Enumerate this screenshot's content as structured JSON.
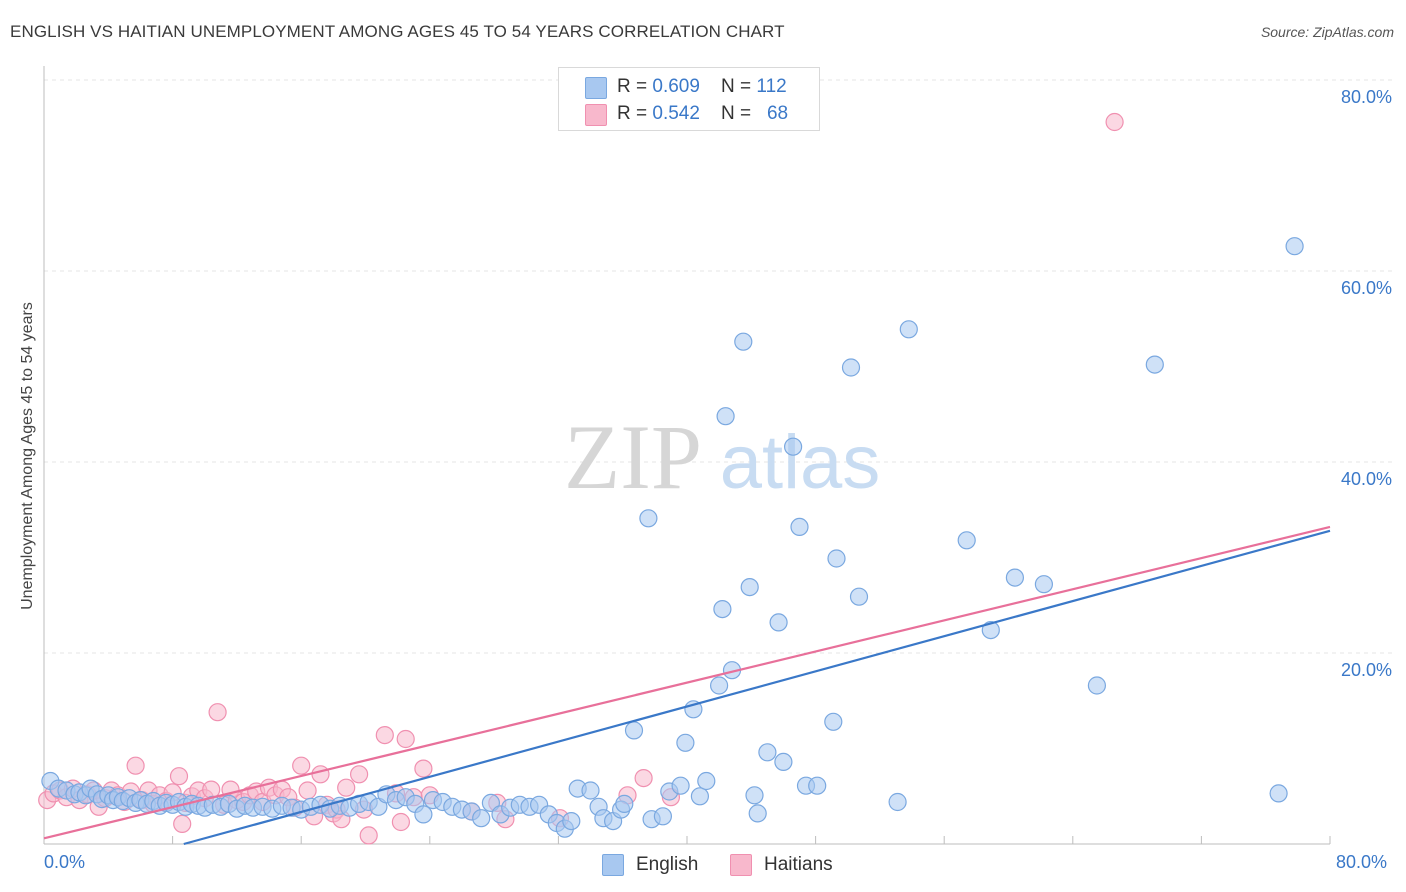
{
  "title": "ENGLISH VS HAITIAN UNEMPLOYMENT AMONG AGES 45 TO 54 YEARS CORRELATION CHART",
  "source": "Source: ZipAtlas.com",
  "watermark": {
    "zip": "ZIP",
    "atlas": "atlas"
  },
  "colors": {
    "english_fill": "#a8c8f0",
    "english_stroke": "#7aa8e0",
    "english_line": "#3a78c8",
    "haitians_fill": "#f8b8cc",
    "haitians_stroke": "#f090b0",
    "haitians_line": "#e8709a",
    "axis_value": "#3a78c8",
    "grid": "#e4e4e4"
  },
  "legend": {
    "rows": [
      {
        "r_label": "R = ",
        "r_value": "0.609",
        "n_label": "N = ",
        "n_value": "112"
      },
      {
        "r_label": "R = ",
        "r_value": "0.542",
        "n_label": "N = ",
        "n_value": "68"
      }
    ]
  },
  "bottom_legend": {
    "english": "English",
    "haitians": "Haitians"
  },
  "chart_data": {
    "type": "scatter",
    "title": "ENGLISH VS HAITIAN UNEMPLOYMENT AMONG AGES 45 TO 54 YEARS CORRELATION CHART",
    "xlabel": "",
    "ylabel": "Unemployment Among Ages 45 to 54 years",
    "xlim": [
      0,
      80
    ],
    "ylim": [
      0,
      80
    ],
    "x_tick_labels": [
      "0.0%",
      "80.0%"
    ],
    "y_ticks": [
      20,
      40,
      60,
      80
    ],
    "y_tick_labels": [
      "20.0%",
      "40.0%",
      "60.0%",
      "80.0%"
    ],
    "grid": true,
    "legend_position": "top-center",
    "series": [
      {
        "name": "English",
        "r": 0.609,
        "n": 112,
        "trend": {
          "x": [
            0,
            80
          ],
          "y": [
            -4.0,
            32.8
          ]
        },
        "points": [
          [
            0.4,
            6.6
          ],
          [
            0.9,
            5.8
          ],
          [
            1.4,
            5.6
          ],
          [
            1.9,
            5.2
          ],
          [
            2.2,
            5.4
          ],
          [
            2.6,
            5.1
          ],
          [
            2.9,
            5.8
          ],
          [
            3.3,
            5.2
          ],
          [
            3.6,
            4.7
          ],
          [
            4.0,
            5.1
          ],
          [
            4.3,
            4.6
          ],
          [
            4.6,
            4.9
          ],
          [
            4.9,
            4.5
          ],
          [
            5.3,
            4.8
          ],
          [
            5.7,
            4.3
          ],
          [
            6.0,
            4.6
          ],
          [
            6.4,
            4.2
          ],
          [
            6.8,
            4.5
          ],
          [
            7.2,
            4.0
          ],
          [
            7.6,
            4.3
          ],
          [
            8.0,
            4.1
          ],
          [
            8.4,
            4.4
          ],
          [
            8.8,
            3.9
          ],
          [
            9.2,
            4.2
          ],
          [
            9.6,
            4.0
          ],
          [
            10.0,
            3.8
          ],
          [
            10.5,
            4.1
          ],
          [
            11.0,
            3.9
          ],
          [
            11.5,
            4.2
          ],
          [
            12.0,
            3.7
          ],
          [
            12.5,
            4.0
          ],
          [
            13.0,
            3.8
          ],
          [
            13.6,
            3.9
          ],
          [
            14.2,
            3.7
          ],
          [
            14.8,
            4.0
          ],
          [
            15.4,
            3.8
          ],
          [
            16.0,
            3.6
          ],
          [
            16.6,
            3.9
          ],
          [
            17.2,
            4.1
          ],
          [
            17.8,
            3.7
          ],
          [
            18.4,
            4.0
          ],
          [
            19.0,
            3.8
          ],
          [
            19.6,
            4.2
          ],
          [
            20.2,
            4.4
          ],
          [
            20.8,
            3.9
          ],
          [
            21.3,
            5.2
          ],
          [
            21.9,
            4.6
          ],
          [
            22.5,
            4.9
          ],
          [
            23.1,
            4.2
          ],
          [
            23.6,
            3.1
          ],
          [
            24.2,
            4.6
          ],
          [
            24.8,
            4.4
          ],
          [
            25.4,
            3.9
          ],
          [
            26.0,
            3.6
          ],
          [
            26.6,
            3.4
          ],
          [
            27.2,
            2.7
          ],
          [
            27.8,
            4.3
          ],
          [
            28.4,
            3.1
          ],
          [
            29.0,
            3.8
          ],
          [
            29.6,
            4.1
          ],
          [
            30.2,
            3.9
          ],
          [
            30.8,
            4.1
          ],
          [
            31.4,
            3.1
          ],
          [
            31.9,
            2.2
          ],
          [
            32.4,
            1.6
          ],
          [
            32.8,
            2.4
          ],
          [
            33.2,
            5.8
          ],
          [
            34.0,
            5.6
          ],
          [
            34.5,
            3.9
          ],
          [
            34.8,
            2.7
          ],
          [
            35.4,
            2.4
          ],
          [
            35.9,
            3.6
          ],
          [
            36.1,
            4.2
          ],
          [
            36.7,
            11.9
          ],
          [
            37.6,
            34.1
          ],
          [
            37.8,
            2.6
          ],
          [
            38.5,
            2.9
          ],
          [
            38.9,
            5.5
          ],
          [
            39.6,
            6.1
          ],
          [
            39.9,
            10.6
          ],
          [
            40.4,
            14.1
          ],
          [
            40.8,
            5.0
          ],
          [
            41.2,
            6.6
          ],
          [
            42.0,
            16.6
          ],
          [
            42.2,
            24.6
          ],
          [
            42.4,
            44.8
          ],
          [
            42.8,
            18.2
          ],
          [
            43.5,
            52.6
          ],
          [
            43.9,
            26.9
          ],
          [
            44.2,
            5.1
          ],
          [
            44.4,
            3.2
          ],
          [
            45.0,
            9.6
          ],
          [
            45.7,
            23.2
          ],
          [
            46.0,
            8.6
          ],
          [
            46.6,
            41.6
          ],
          [
            47.0,
            33.2
          ],
          [
            47.4,
            6.1
          ],
          [
            48.1,
            6.1
          ],
          [
            49.1,
            12.8
          ],
          [
            49.3,
            29.9
          ],
          [
            50.2,
            49.9
          ],
          [
            50.7,
            25.9
          ],
          [
            53.1,
            4.4
          ],
          [
            53.8,
            53.9
          ],
          [
            57.4,
            31.8
          ],
          [
            58.9,
            22.4
          ],
          [
            60.4,
            27.9
          ],
          [
            62.2,
            27.2
          ],
          [
            65.5,
            16.6
          ],
          [
            69.1,
            50.2
          ],
          [
            76.8,
            5.3
          ],
          [
            77.8,
            62.6
          ]
        ]
      },
      {
        "name": "Haitians",
        "r": 0.542,
        "n": 68,
        "trend": {
          "x": [
            0,
            80
          ],
          "y": [
            0.6,
            33.2
          ]
        },
        "points": [
          [
            0.2,
            4.6
          ],
          [
            0.6,
            5.3
          ],
          [
            1.0,
            5.6
          ],
          [
            1.4,
            4.9
          ],
          [
            1.8,
            5.8
          ],
          [
            2.2,
            4.6
          ],
          [
            2.7,
            5.2
          ],
          [
            3.1,
            5.6
          ],
          [
            3.4,
            3.9
          ],
          [
            3.8,
            4.8
          ],
          [
            4.2,
            5.6
          ],
          [
            4.6,
            5.1
          ],
          [
            5.0,
            4.4
          ],
          [
            5.4,
            5.5
          ],
          [
            5.7,
            8.2
          ],
          [
            6.1,
            4.6
          ],
          [
            6.5,
            5.6
          ],
          [
            6.8,
            4.2
          ],
          [
            7.2,
            5.1
          ],
          [
            7.6,
            4.5
          ],
          [
            8.0,
            5.4
          ],
          [
            8.4,
            7.1
          ],
          [
            8.6,
            2.1
          ],
          [
            8.8,
            4.3
          ],
          [
            9.2,
            5.0
          ],
          [
            9.6,
            5.6
          ],
          [
            10.0,
            4.8
          ],
          [
            10.4,
            5.7
          ],
          [
            10.8,
            13.8
          ],
          [
            11.2,
            4.1
          ],
          [
            11.6,
            5.7
          ],
          [
            12.0,
            4.6
          ],
          [
            12.4,
            4.4
          ],
          [
            12.8,
            5.1
          ],
          [
            13.2,
            5.5
          ],
          [
            13.6,
            4.4
          ],
          [
            14.0,
            5.9
          ],
          [
            14.4,
            5.1
          ],
          [
            14.8,
            5.7
          ],
          [
            15.2,
            4.9
          ],
          [
            15.6,
            3.8
          ],
          [
            16.0,
            8.2
          ],
          [
            16.4,
            5.6
          ],
          [
            16.8,
            2.9
          ],
          [
            17.2,
            7.3
          ],
          [
            17.6,
            4.1
          ],
          [
            18.0,
            3.2
          ],
          [
            18.2,
            3.6
          ],
          [
            18.5,
            2.6
          ],
          [
            18.8,
            5.9
          ],
          [
            19.6,
            7.3
          ],
          [
            19.9,
            3.6
          ],
          [
            20.2,
            0.9
          ],
          [
            21.2,
            11.4
          ],
          [
            21.9,
            5.3
          ],
          [
            22.2,
            2.3
          ],
          [
            22.5,
            11.0
          ],
          [
            23.0,
            4.9
          ],
          [
            23.6,
            7.9
          ],
          [
            24.0,
            5.1
          ],
          [
            26.6,
            3.4
          ],
          [
            28.2,
            4.3
          ],
          [
            28.7,
            2.6
          ],
          [
            32.1,
            2.7
          ],
          [
            36.3,
            5.1
          ],
          [
            37.3,
            6.9
          ],
          [
            39.0,
            4.9
          ],
          [
            66.6,
            75.6
          ]
        ]
      }
    ]
  }
}
